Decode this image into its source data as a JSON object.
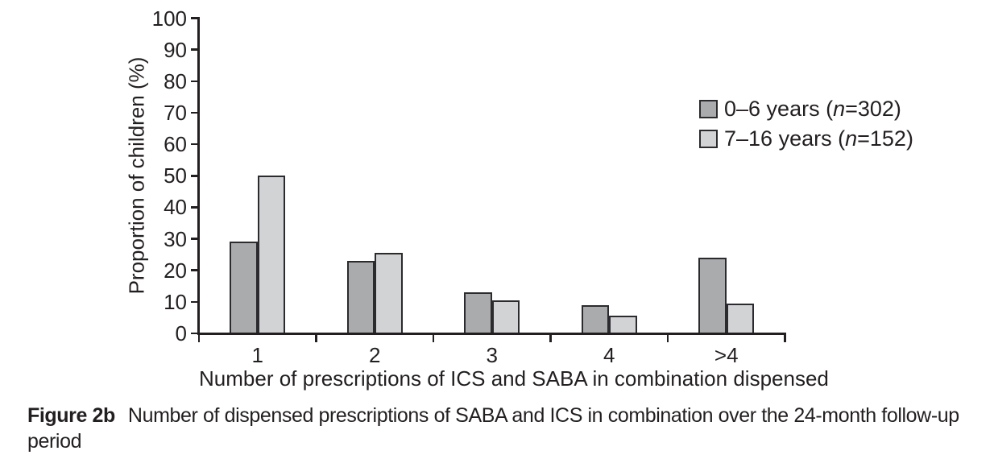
{
  "figure": {
    "caption": {
      "label": "Figure 2b",
      "line1": "Number of dispensed prescriptions of SABA and ICS in combination over the 24-month follow-up",
      "line2": "period"
    }
  },
  "chart_data": {
    "type": "bar",
    "title": "",
    "categories": [
      "1",
      "2",
      "3",
      "4",
      ">4"
    ],
    "series": [
      {
        "name": "0–6 years (n=302)",
        "values": [
          29,
          23,
          13,
          9,
          24
        ],
        "color": "#a9abac"
      },
      {
        "name": "7–16 years (n=152)",
        "values": [
          50,
          25.5,
          10.5,
          5.5,
          9.5
        ],
        "color": "#d2d3d5"
      }
    ],
    "xlabel": "Number of prescriptions of ICS and SABA in combination dispensed",
    "ylabel": "Proportion of children (%)",
    "ylim": [
      0,
      100
    ],
    "yticks": [
      0,
      10,
      20,
      30,
      40,
      50,
      60,
      70,
      80,
      90,
      100
    ],
    "grid": false,
    "legend_position": "upper-right",
    "bar_border_color": "#2b2a2e",
    "axis_color": "#231f20"
  },
  "legend": {
    "items": [
      {
        "pre": "0–6 years (",
        "n": "n",
        "post": "=302)"
      },
      {
        "pre": "7–16 years (",
        "n": "n",
        "post": "=152)"
      }
    ]
  }
}
